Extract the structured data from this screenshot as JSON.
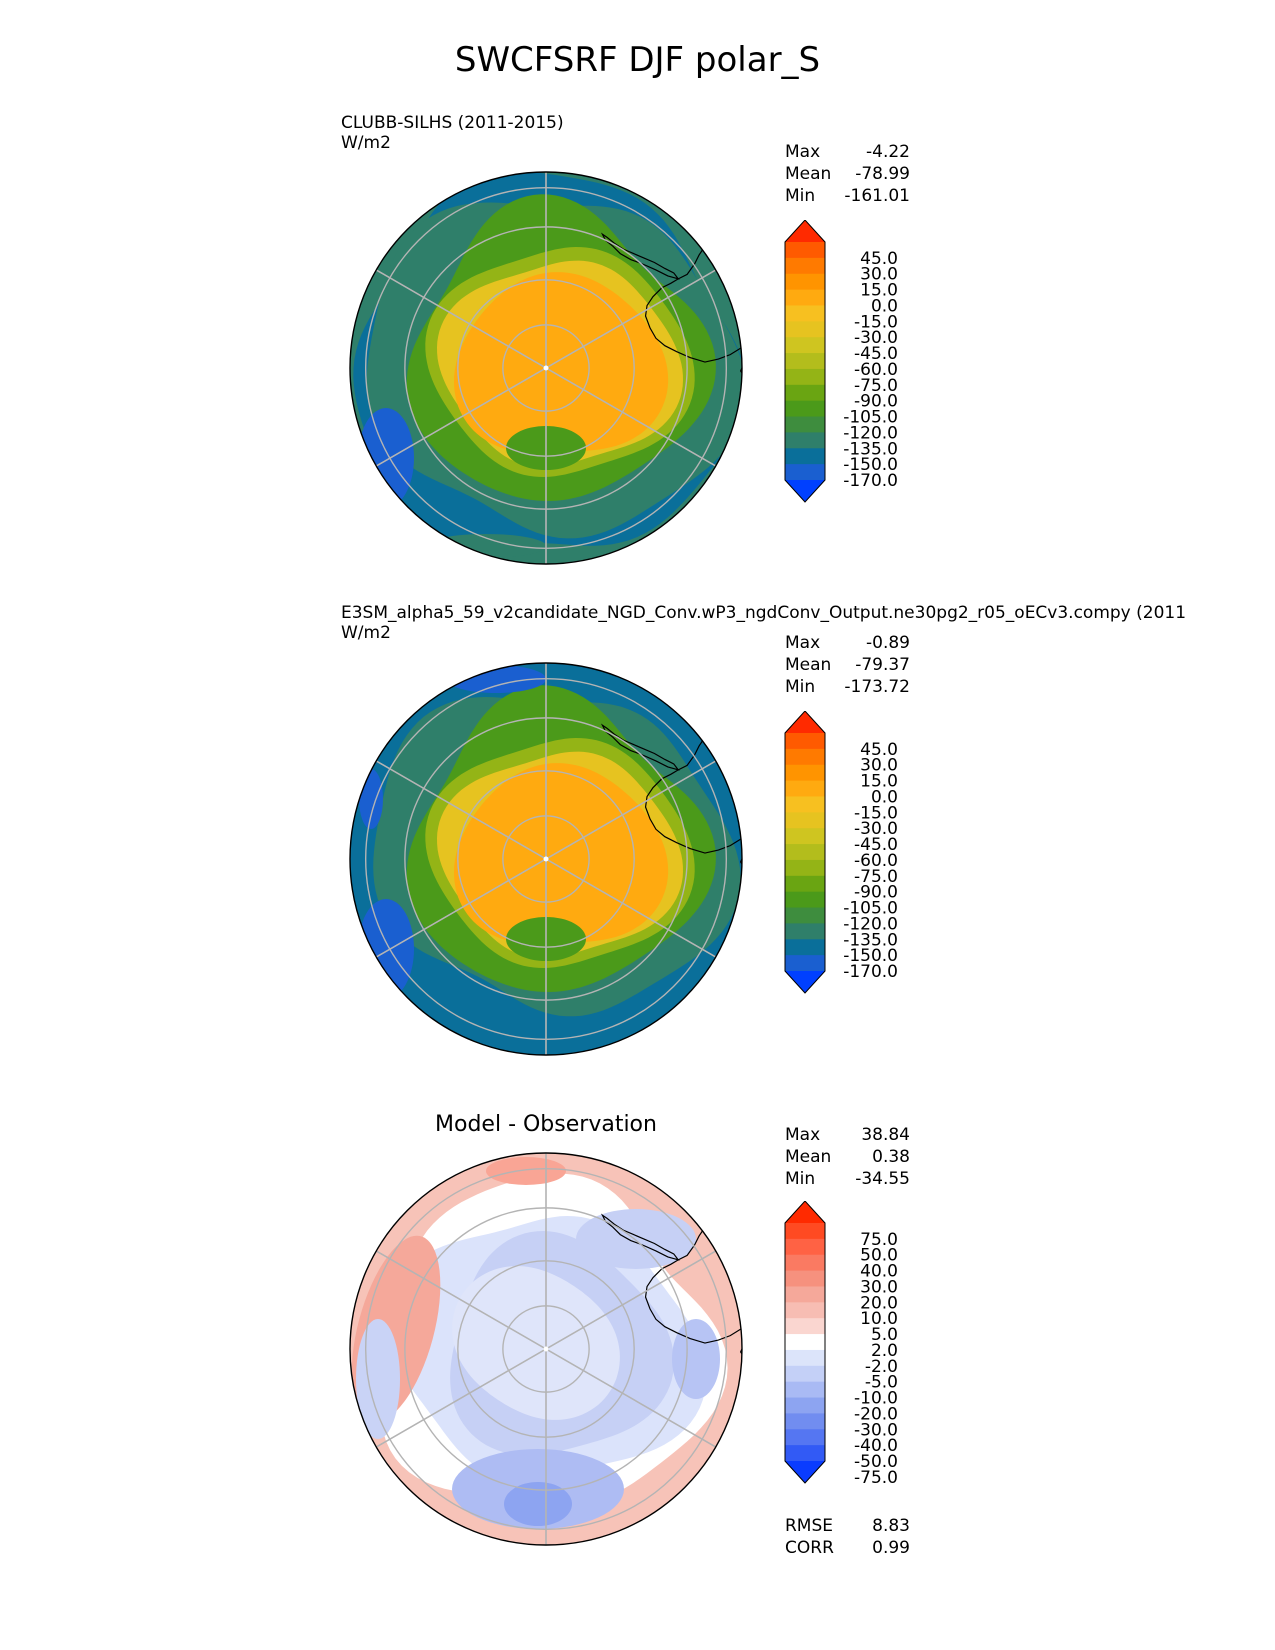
{
  "title": "SWCFSRF DJF polar_S",
  "panels": [
    {
      "id": "test",
      "label": "CLUBB-SILHS (2011-2015)",
      "units": "W/m2",
      "center_title": "",
      "stats": [
        {
          "label": "Max",
          "value": "-4.22"
        },
        {
          "label": "Mean",
          "value": "-78.99"
        },
        {
          "label": "Min",
          "value": "-161.01"
        }
      ],
      "colorbar_labels": [
        "45.0",
        "30.0",
        "15.0",
        "0.0",
        "-15.0",
        "-30.0",
        "-45.0",
        "-60.0",
        "-75.0",
        "-90.0",
        "-105.0",
        "-120.0",
        "-135.0",
        "-150.0",
        "-170.0"
      ],
      "colors": [
        "#ff2a00",
        "#ff5a00",
        "#ff7a00",
        "#ff9400",
        "#ffaa10",
        "#f7c020",
        "#e6c320",
        "#cfc520",
        "#b3bd1c",
        "#94b416",
        "#6aa512",
        "#4b9a1a",
        "#3e8d3e",
        "#2f7f6a",
        "#0a6f9a",
        "#1a5fd0",
        "#0040ff"
      ]
    },
    {
      "id": "reference",
      "label": "E3SM_alpha5_59_v2candidate_NGD_Conv.wP3_ngdConv_Output.ne30pg2_r05_oECv3.compy (2011",
      "units": "W/m2",
      "center_title": "",
      "stats": [
        {
          "label": "Max",
          "value": "-0.89"
        },
        {
          "label": "Mean",
          "value": "-79.37"
        },
        {
          "label": "Min",
          "value": "-173.72"
        }
      ],
      "colorbar_labels": [
        "45.0",
        "30.0",
        "15.0",
        "0.0",
        "-15.0",
        "-30.0",
        "-45.0",
        "-60.0",
        "-75.0",
        "-90.0",
        "-105.0",
        "-120.0",
        "-135.0",
        "-150.0",
        "-170.0"
      ],
      "colors": [
        "#ff2a00",
        "#ff5a00",
        "#ff7a00",
        "#ff9400",
        "#ffaa10",
        "#f7c020",
        "#e6c320",
        "#cfc520",
        "#b3bd1c",
        "#94b416",
        "#6aa512",
        "#4b9a1a",
        "#3e8d3e",
        "#2f7f6a",
        "#0a6f9a",
        "#1a5fd0",
        "#0040ff"
      ]
    },
    {
      "id": "diff",
      "label": "",
      "units": "",
      "center_title": "Model - Observation",
      "stats": [
        {
          "label": "Max",
          "value": "38.84"
        },
        {
          "label": "Mean",
          "value": "0.38"
        },
        {
          "label": "Min",
          "value": "-34.55"
        }
      ],
      "colorbar_labels": [
        "75.0",
        "50.0",
        "40.0",
        "30.0",
        "20.0",
        "10.0",
        "5.0",
        "2.0",
        "-2.0",
        "-5.0",
        "-10.0",
        "-20.0",
        "-30.0",
        "-40.0",
        "-50.0",
        "-75.0"
      ],
      "colors": [
        "#ff2a00",
        "#ff4a22",
        "#ff6244",
        "#fa7a62",
        "#f6917e",
        "#f5a89a",
        "#f7bdb3",
        "#fad6d0",
        "#ffffff",
        "#dce4fa",
        "#c4d0f7",
        "#a9baf4",
        "#8da4f1",
        "#718df0",
        "#5576f2",
        "#325af5",
        "#0a3cff"
      ],
      "rmse": {
        "label": "RMSE",
        "value": "8.83"
      },
      "corr": {
        "label": "CORR",
        "value": "0.99"
      }
    }
  ],
  "chart_data": [
    {
      "type": "heatmap",
      "projection": "south-polar-stereographic",
      "title": "CLUBB-SILHS (2011-2015)",
      "units": "W/m2",
      "max": -4.22,
      "mean": -78.99,
      "min": -161.01,
      "levels": [
        -170,
        -150,
        -135,
        -120,
        -105,
        -90,
        -75,
        -60,
        -45,
        -30,
        -15,
        0,
        15,
        30,
        45
      ]
    },
    {
      "type": "heatmap",
      "projection": "south-polar-stereographic",
      "title": "E3SM_alpha5_59_v2candidate_NGD_Conv.wP3_ngdConv_Output.ne30pg2_r05_oECv3.compy (2011",
      "units": "W/m2",
      "max": -0.89,
      "mean": -79.37,
      "min": -173.72,
      "levels": [
        -170,
        -150,
        -135,
        -120,
        -105,
        -90,
        -75,
        -60,
        -45,
        -30,
        -15,
        0,
        15,
        30,
        45
      ]
    },
    {
      "type": "heatmap",
      "projection": "south-polar-stereographic",
      "title": "Model - Observation",
      "max": 38.84,
      "mean": 0.38,
      "min": -34.55,
      "rmse": 8.83,
      "corr": 0.99,
      "levels": [
        -75,
        -50,
        -40,
        -30,
        -20,
        -10,
        -5,
        -2,
        2,
        5,
        10,
        20,
        30,
        40,
        50,
        75
      ]
    }
  ]
}
